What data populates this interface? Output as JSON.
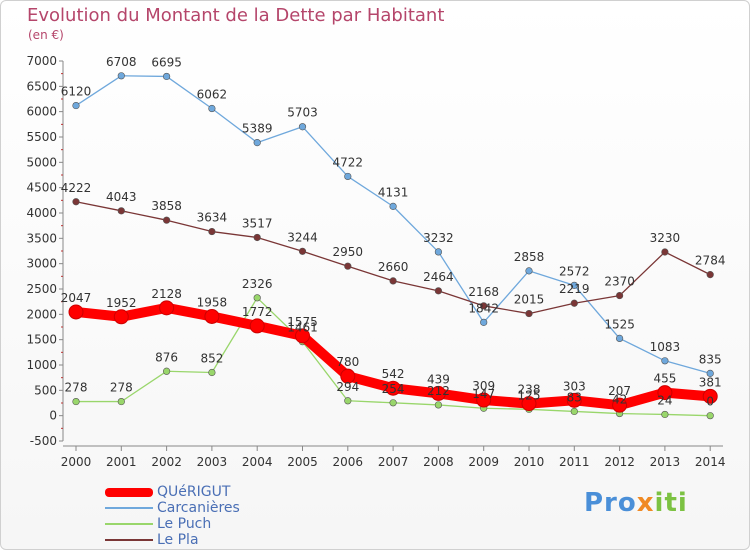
{
  "header": {
    "title": "Evolution du Montant de la Dette par Habitant",
    "subtitle": "(en €)"
  },
  "brand": {
    "part1": "Pro",
    "part2": "x",
    "part3": "iti"
  },
  "chart_data": {
    "type": "line",
    "title": "Evolution du Montant de la Dette par Habitant",
    "subtitle": "(en €)",
    "xlabel": "",
    "ylabel": "",
    "ylim": [
      -500,
      7000
    ],
    "yticks": [
      -500,
      0,
      500,
      1000,
      1500,
      2000,
      2500,
      3000,
      3500,
      4000,
      4500,
      5000,
      5500,
      6000,
      6500,
      7000
    ],
    "categories": [
      "2000",
      "2001",
      "2002",
      "2003",
      "2004",
      "2005",
      "2006",
      "2007",
      "2008",
      "2009",
      "2010",
      "2011",
      "2012",
      "2013",
      "2014"
    ],
    "grid": false,
    "legend_position": "bottom-left",
    "series": [
      {
        "name": "QUéRIGUT",
        "color": "#ff0000",
        "values": [
          2047,
          1952,
          2128,
          1958,
          1772,
          1575,
          780,
          542,
          439,
          309,
          238,
          303,
          207,
          455,
          381
        ],
        "labels": [
          "2047",
          "1952",
          "2128",
          "1958",
          "1772",
          "1575",
          "780",
          "542",
          "439",
          "309",
          "238",
          "303",
          "207",
          "455",
          "381"
        ]
      },
      {
        "name": "Carcanières",
        "color": "#6fa8dc",
        "values": [
          6120,
          6708,
          6695,
          6062,
          5389,
          5703,
          4722,
          4131,
          3232,
          1842,
          2858,
          2572,
          1525,
          1083,
          835
        ],
        "labels": [
          "6120",
          "6708",
          "6695",
          "6062",
          "5389",
          "5703",
          "4722",
          "4131",
          "3232",
          "1842",
          "2858",
          "2572",
          "1525",
          "1083",
          "835"
        ]
      },
      {
        "name": "Le Puch",
        "color": "#99d66b",
        "values": [
          278,
          278,
          876,
          852,
          2326,
          1461,
          294,
          254,
          212,
          147,
          125,
          83,
          42,
          24,
          0
        ],
        "labels": [
          "278",
          "278",
          "876",
          "852",
          "2326",
          "1461",
          "294",
          "254",
          "212",
          "147",
          "125",
          "83",
          "42",
          "24",
          "0"
        ]
      },
      {
        "name": "Le Pla",
        "color": "#7a3636",
        "values": [
          4222,
          4043,
          3858,
          3634,
          3517,
          3244,
          2950,
          2660,
          2464,
          2168,
          2015,
          2219,
          2370,
          3230,
          2784
        ],
        "labels": [
          "4222",
          "4043",
          "3858",
          "3634",
          "3517",
          "3244",
          "2950",
          "2660",
          "2464",
          "2168",
          "2015",
          "2219",
          "2370",
          "3230",
          "2784"
        ]
      }
    ]
  }
}
